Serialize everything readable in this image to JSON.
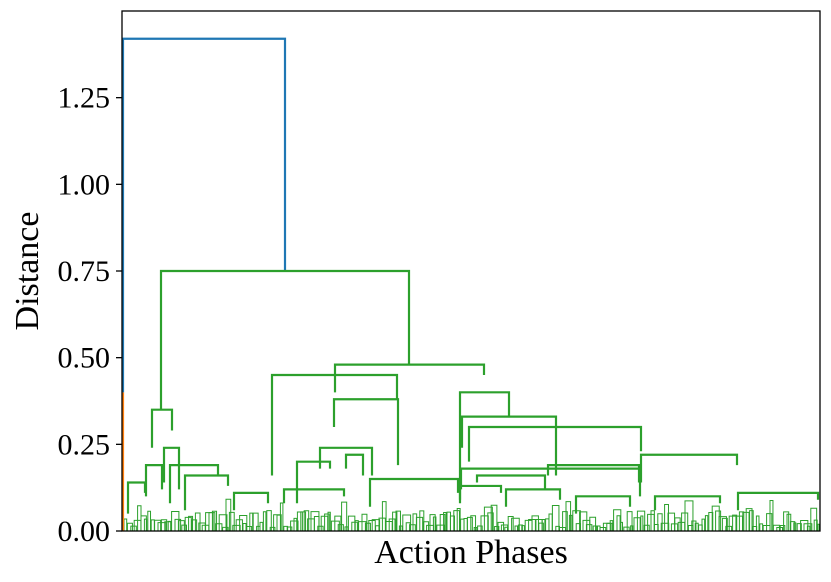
{
  "chart_data": {
    "type": "dendrogram",
    "title": "",
    "xlabel": "Action Phases",
    "ylabel": "Distance",
    "ylim": [
      0,
      1.5
    ],
    "yticks": [
      "0.00",
      "0.25",
      "0.50",
      "0.75",
      "1.00",
      "1.25"
    ],
    "ytick_values": [
      0,
      0.25,
      0.5,
      0.75,
      1.0,
      1.25
    ],
    "colors": {
      "root": "#1f77b4",
      "small_cluster": "#ff7f0e",
      "main_cluster": "#2ca02c"
    },
    "root_merge_height": 1.42,
    "small_cluster_max_height": 0.4,
    "main_cluster_merges": [
      {
        "height": 0.75,
        "left_height": 0.35,
        "right_height": 0.48
      },
      {
        "height": 0.48,
        "left_height": 0.4,
        "right_height": 0.45
      },
      {
        "height": 0.45,
        "left_height": 0.16,
        "right_height": 0.38
      },
      {
        "height": 0.4,
        "left_height": 0.08,
        "right_height": 0.33
      },
      {
        "height": 0.38,
        "left_height": 0.3,
        "right_height": 0.19
      },
      {
        "height": 0.35,
        "left_height": 0.24,
        "right_height": 0.29
      },
      {
        "height": 0.33,
        "left_height": 0.24,
        "right_height": 0.16
      },
      {
        "height": 0.3,
        "left_height": 0.2,
        "right_height": 0.23
      },
      {
        "height": 0.24,
        "left_height": 0.18,
        "right_height": 0.16
      },
      {
        "height": 0.19,
        "left_height": 0.1,
        "right_height": 0.12
      },
      {
        "height": 0.18,
        "left_height": 0.12,
        "right_height": 0.1
      }
    ]
  }
}
